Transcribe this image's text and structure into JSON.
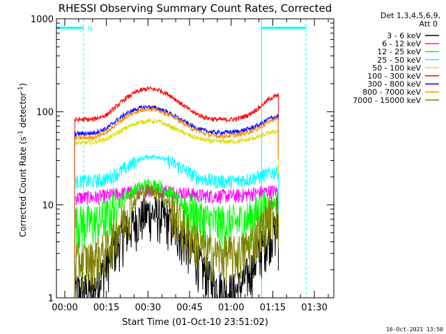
{
  "chart_data": {
    "type": "line",
    "title": "RHESSI Observing Summary Count Rates, Corrected",
    "xlabel": "Start Time (01-Oct-10 23:51:02)",
    "ylabel": "Corrected Count Rate (s-1 detector-1)",
    "ylabel_parts": {
      "a": "Corrected Count Rate (s",
      "b": "-1",
      "c": " detector",
      "d": "-1",
      "e": ")"
    },
    "y_scale": "log",
    "ylim": [
      1,
      1000
    ],
    "y_ticks": [
      "1",
      "10",
      "100",
      "1000"
    ],
    "xlim_minutes": [
      -3.0,
      97.0
    ],
    "x_ticks": [
      {
        "label": "00:00",
        "minutes": 0
      },
      {
        "label": "00:15",
        "minutes": 15
      },
      {
        "label": "00:30",
        "minutes": 30
      },
      {
        "label": "00:45",
        "minutes": 45
      },
      {
        "label": "01:00",
        "minutes": 60
      },
      {
        "label": "01:15",
        "minutes": 75
      },
      {
        "label": "01:30",
        "minutes": 90
      }
    ],
    "x_tick_minutes": [
      0,
      15,
      30,
      45,
      60,
      75,
      90
    ],
    "detector_info": [
      "Det 1,3,4,5,6,9,",
      "Att 0"
    ],
    "orbit_markers": {
      "night_segments_minutes": [
        [
          -3.0,
          6.8
        ],
        [
          71.0,
          87.0
        ]
      ],
      "night_level": 800,
      "solid_lines_minutes": [
        -3.0,
        71.0
      ],
      "dashed_lines_minutes": [
        6.8,
        87.0
      ],
      "saa_label": "N",
      "saa_label_minutes": 8.3,
      "color": "#00ffff"
    },
    "data_start_minutes": 3.6,
    "data_end_minutes": 77.0,
    "series": [
      {
        "name": "3 - 6 keV",
        "color": "#000000",
        "x": [
          4,
          10,
          15,
          18,
          22,
          26,
          30,
          34,
          38,
          42,
          46,
          50,
          54,
          58,
          62,
          66,
          70,
          74,
          77
        ],
        "y": [
          1.2,
          1.2,
          2.2,
          3.5,
          5.2,
          7.0,
          8.4,
          8.0,
          6.5,
          4.6,
          3.2,
          2.0,
          1.4,
          1.2,
          1.2,
          1.8,
          3.0,
          5.0,
          5.5
        ]
      },
      {
        "name": "6 - 12 keV",
        "color": "#ff00ff",
        "x": [
          4,
          10,
          15,
          18,
          22,
          26,
          30,
          34,
          38,
          42,
          46,
          50,
          54,
          58,
          62,
          66,
          70,
          74,
          77
        ],
        "y": [
          12,
          12,
          12.5,
          13,
          13.5,
          14,
          14.5,
          14.5,
          14,
          13.5,
          13,
          12.5,
          12.5,
          12.5,
          12.5,
          13,
          13.5,
          14,
          14
        ]
      },
      {
        "name": "12 - 25 keV",
        "color": "#00ff00",
        "x": [
          4,
          10,
          15,
          18,
          22,
          26,
          30,
          34,
          38,
          42,
          46,
          50,
          54,
          58,
          62,
          66,
          70,
          74,
          77
        ],
        "y": [
          6.5,
          6.5,
          7.5,
          9.5,
          12.5,
          15,
          16.5,
          16,
          13.5,
          10.5,
          8.5,
          7.2,
          6.5,
          6.5,
          6.5,
          7.2,
          8.5,
          10,
          11
        ]
      },
      {
        "name": "25 - 50 keV",
        "color": "#00ffff",
        "x": [
          4,
          10,
          15,
          18,
          22,
          26,
          30,
          34,
          38,
          42,
          46,
          50,
          54,
          58,
          62,
          66,
          70,
          74,
          77
        ],
        "y": [
          18,
          18,
          19,
          21,
          25,
          30,
          33,
          33,
          29,
          25,
          21,
          19,
          18,
          18,
          18,
          19,
          20,
          22,
          23
        ]
      },
      {
        "name": "50 - 100 keV",
        "color": "#dddd00",
        "x": [
          4,
          10,
          15,
          18,
          22,
          26,
          30,
          34,
          38,
          42,
          46,
          50,
          54,
          58,
          62,
          66,
          70,
          74,
          77
        ],
        "y": [
          46,
          47,
          51,
          57,
          67,
          76,
          80,
          78,
          70,
          61,
          54,
          50,
          48,
          48,
          48,
          50,
          54,
          60,
          62
        ]
      },
      {
        "name": "100 - 300 keV",
        "color": "#ff0000",
        "x": [
          4,
          10,
          15,
          18,
          22,
          26,
          30,
          34,
          38,
          42,
          46,
          50,
          54,
          58,
          62,
          66,
          70,
          74,
          77
        ],
        "y": [
          82,
          83,
          92,
          110,
          140,
          165,
          178,
          172,
          150,
          122,
          100,
          88,
          83,
          82,
          84,
          92,
          110,
          140,
          150
        ]
      },
      {
        "name": "300 - 800 keV",
        "color": "#0000ff",
        "x": [
          4,
          10,
          15,
          18,
          22,
          26,
          30,
          34,
          38,
          42,
          46,
          50,
          54,
          58,
          62,
          66,
          70,
          74,
          77
        ],
        "y": [
          58,
          59,
          66,
          78,
          95,
          108,
          113,
          108,
          96,
          82,
          70,
          63,
          60,
          60,
          61,
          65,
          72,
          85,
          90
        ]
      },
      {
        "name": "800 - 7000 keV",
        "color": "#ff8c00",
        "x": [
          4,
          10,
          15,
          18,
          22,
          26,
          30,
          34,
          38,
          42,
          46,
          50,
          54,
          58,
          62,
          66,
          70,
          74,
          77
        ],
        "y": [
          52,
          53,
          60,
          71,
          88,
          101,
          108,
          104,
          92,
          78,
          66,
          59,
          55,
          55,
          56,
          60,
          67,
          80,
          85
        ]
      },
      {
        "name": "7000 - 15000 keV",
        "color": "#808000",
        "x": [
          4,
          10,
          15,
          18,
          22,
          26,
          30,
          34,
          38,
          42,
          46,
          50,
          54,
          58,
          62,
          66,
          70,
          74,
          77
        ],
        "y": [
          2.6,
          2.6,
          3.4,
          5.0,
          8.0,
          12.0,
          14.5,
          13.5,
          10.0,
          6.5,
          4.6,
          3.5,
          3.0,
          3.0,
          3.0,
          3.6,
          5.2,
          8.0,
          9.5
        ]
      }
    ],
    "grid": false,
    "legend_placement": "right",
    "footer_date": "16-Oct-2021 13:50"
  }
}
